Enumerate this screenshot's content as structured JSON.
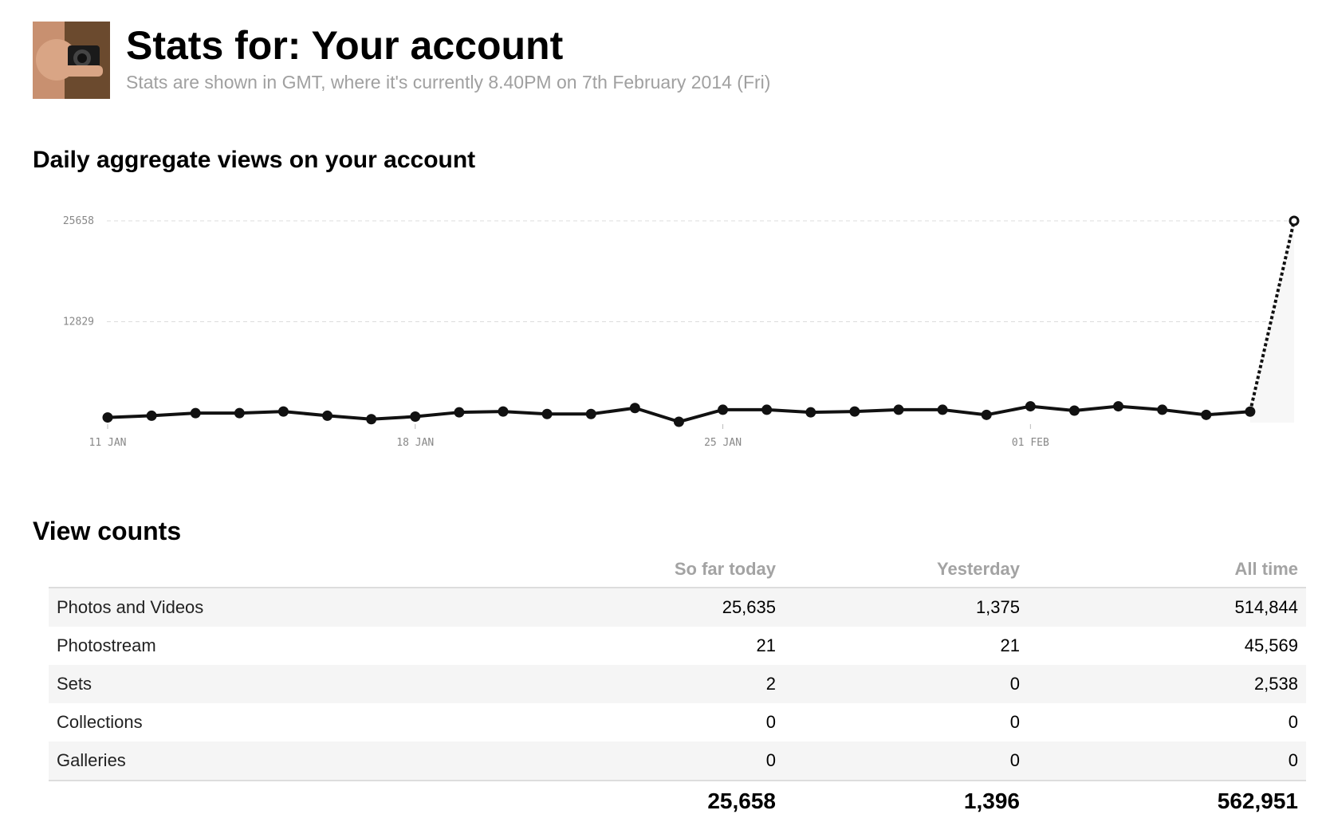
{
  "header": {
    "title": "Stats for: Your account",
    "subtitle": "Stats are shown in GMT, where it's currently 8.40PM on 7th February 2014 (Fri)"
  },
  "chart_data": {
    "type": "line",
    "title": "Daily aggregate views on your account",
    "categories": [
      "11 JAN",
      null,
      null,
      null,
      null,
      null,
      null,
      "18 JAN",
      null,
      null,
      null,
      null,
      null,
      null,
      "25 JAN",
      null,
      null,
      null,
      null,
      null,
      null,
      "01 FEB",
      null,
      null,
      null,
      null,
      null,
      null
    ],
    "values": [
      650,
      870,
      1200,
      1200,
      1410,
      870,
      430,
      760,
      1300,
      1410,
      1090,
      1090,
      1850,
      100,
      1630,
      1630,
      1300,
      1410,
      1630,
      1630,
      980,
      2070,
      1520,
      2070,
      1630,
      980,
      1396,
      25658
    ],
    "color": "#111111",
    "ylim": [
      0,
      25658
    ],
    "yticks": [
      12829,
      25658
    ],
    "grid": true
  },
  "table": {
    "title": "View counts",
    "columns": [
      "So far today",
      "Yesterday",
      "All time"
    ],
    "rows": [
      {
        "label": "Photos and Videos",
        "values": [
          "25,635",
          "1,375",
          "514,844"
        ]
      },
      {
        "label": "Photostream",
        "values": [
          "21",
          "21",
          "45,569"
        ]
      },
      {
        "label": "Sets",
        "values": [
          "2",
          "0",
          "2,538"
        ]
      },
      {
        "label": "Collections",
        "values": [
          "0",
          "0",
          "0"
        ]
      },
      {
        "label": "Galleries",
        "values": [
          "0",
          "0",
          "0"
        ]
      }
    ],
    "totals": [
      "25,658",
      "1,396",
      "562,951"
    ]
  }
}
